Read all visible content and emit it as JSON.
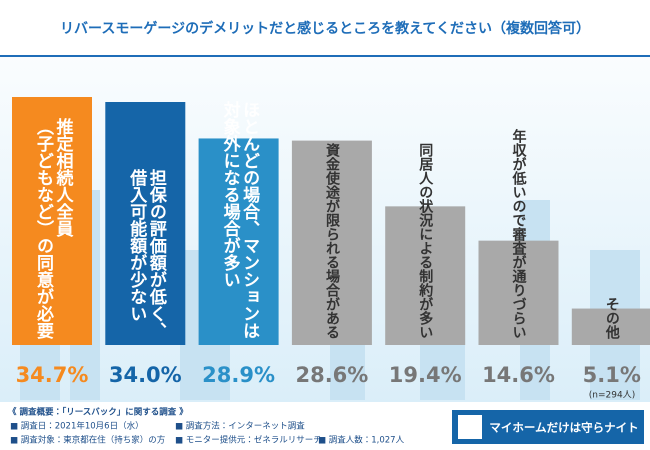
{
  "chart_data": {
    "type": "bar",
    "title": "リバースモーゲージのデメリットだと感じるところを教えてください（複数回答可）",
    "categories": [
      "推定相続人全員\n（子どもなど）の同意が必要",
      "担保の評価額が低く、\n借入可能額が少ない",
      "ほとんどの場合、マンションは\n対象外になる場合が多い",
      "資金使途が限られる場合がある",
      "同居人の状況による制約が多い",
      "年収が低いので審査が通りづらい",
      "その他"
    ],
    "values": [
      34.7,
      34.0,
      28.9,
      28.6,
      19.4,
      14.6,
      5.1
    ],
    "value_labels": [
      "34.7%",
      "34.0%",
      "28.9%",
      "28.6%",
      "19.4%",
      "14.6%",
      "5.1%"
    ],
    "colors": [
      "#f58a1f",
      "#1565a8",
      "#2a90c8",
      "#a9a9a9",
      "#a9a9a9",
      "#a9a9a9",
      "#a9a9a9"
    ],
    "note": "(n=294人)"
  },
  "survey": {
    "heading": "《 調査概要：「リースバック」に関する調査 》",
    "items": [
      "■ 調査日：2021年10月6日（水）",
      "■ 調査方法：インターネット調査",
      "■ 調査対象：東京都在住（持ち家）の方",
      "■ モニター提供元：ゼネラルリサーチ",
      "■ 調査人数：1,027人"
    ]
  },
  "logo": "マイホームだけは守らナイト"
}
